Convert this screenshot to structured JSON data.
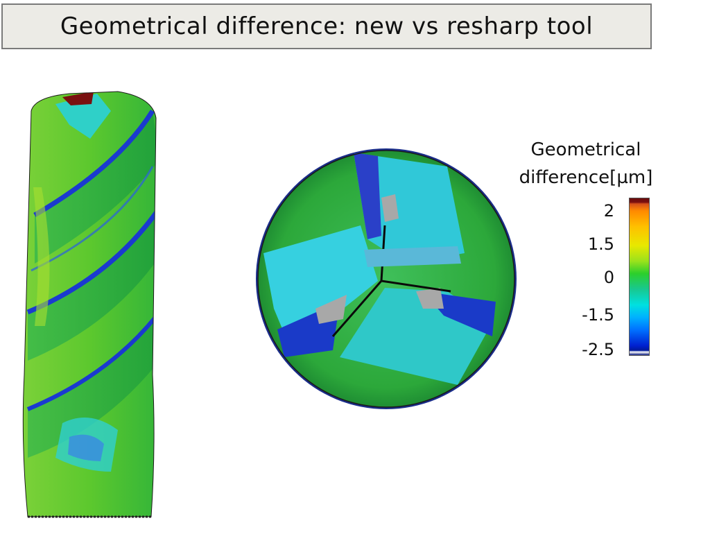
{
  "title": "Geometrical difference: new vs resharp tool",
  "legend": {
    "title_line1": "Geometrical",
    "title_line2": "difference[µm]",
    "ticks": [
      "2",
      "1.5",
      "0",
      "-1.5",
      "-2.5"
    ]
  },
  "colors": {
    "title_background": "#ecebe6",
    "title_border": "#7a7a7a",
    "scale_max": "#7a1010",
    "scale_high": "#ff8a00",
    "scale_mid": "#2ccf2c",
    "scale_low": "#00e0e0",
    "scale_min": "#0020d0"
  }
}
